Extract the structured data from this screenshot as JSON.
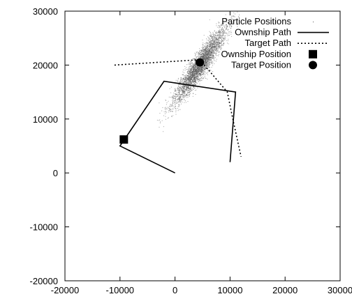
{
  "chart_data": {
    "type": "scatter",
    "title": "",
    "xlabel": "",
    "ylabel": "",
    "xlim": [
      -20000,
      30000
    ],
    "ylim": [
      -20000,
      30000
    ],
    "x_ticks": [
      -20000,
      -10000,
      0,
      10000,
      20000,
      30000
    ],
    "y_ticks": [
      -20000,
      -10000,
      0,
      10000,
      20000,
      30000
    ],
    "x_tick_labels": [
      "-20000",
      "-10000",
      "0",
      "10000",
      "20000",
      "30000"
    ],
    "y_tick_labels": [
      "-20000",
      "-10000",
      "0",
      "10000",
      "20000",
      "30000"
    ],
    "grid": false,
    "legend_position": "top-right",
    "series": [
      {
        "name": "Particle Positions",
        "kind": "points",
        "color": "#555555",
        "distribution": {
          "center": [
            4500,
            20000
          ],
          "direction": [
            0.55,
            0.835
          ],
          "sd_along": 4200,
          "sd_across": 750,
          "count": 3500
        }
      },
      {
        "name": "Ownship Path",
        "kind": "line",
        "style": "solid",
        "color": "#000000",
        "x": [
          0,
          -10000,
          -2000,
          11000,
          10000
        ],
        "y": [
          0,
          5000,
          17000,
          15000,
          2000
        ]
      },
      {
        "name": "Target Path",
        "kind": "line",
        "style": "dotted",
        "color": "#000000",
        "segments": [
          {
            "x": [
              -11000,
              4500
            ],
            "y": [
              20000,
              21000
            ]
          },
          {
            "x": [
              4500,
              9500,
              10500,
              12000
            ],
            "y": [
              21000,
              15000,
              10000,
              3000
            ]
          }
        ]
      },
      {
        "name": "Ownship Position",
        "kind": "marker",
        "marker": "square",
        "color": "#000000",
        "x": [
          -9300
        ],
        "y": [
          6200
        ]
      },
      {
        "name": "Target Position",
        "kind": "marker",
        "marker": "circle",
        "color": "#000000",
        "x": [
          4500
        ],
        "y": [
          20500
        ]
      }
    ],
    "legend": [
      {
        "label": "Particle Positions",
        "symbol": "dot"
      },
      {
        "label": "Ownship Path",
        "symbol": "solid-line"
      },
      {
        "label": "Target Path",
        "symbol": "dotted-line"
      },
      {
        "label": "Ownship Position",
        "symbol": "square"
      },
      {
        "label": "Target Position",
        "symbol": "circle"
      }
    ]
  }
}
